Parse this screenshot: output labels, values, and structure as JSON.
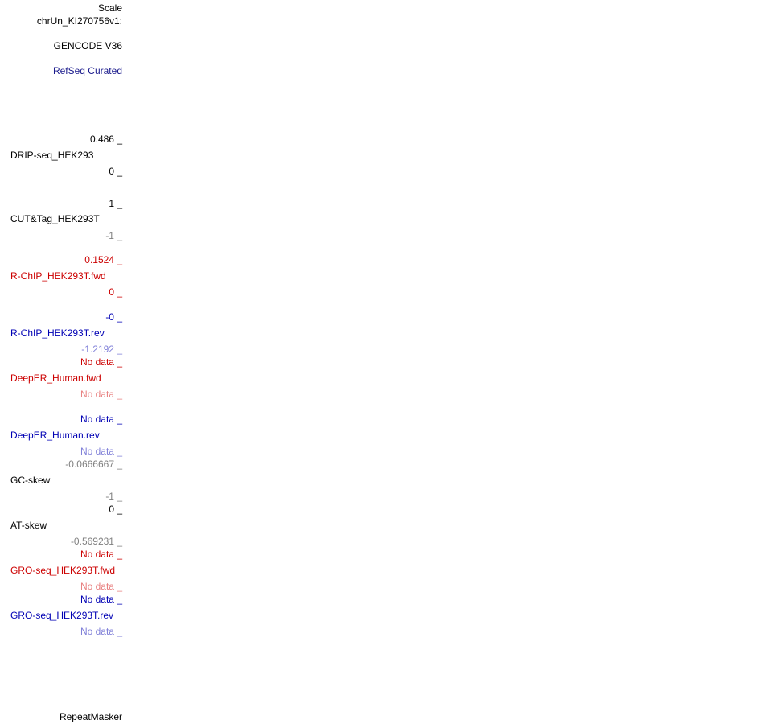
{
  "header": {
    "scale": "Scale",
    "position": "chrUn_KI270756v1:"
  },
  "annotation_tracks": [
    "GENCODE V36",
    "RefSeq Curated"
  ],
  "tracks": [
    {
      "name": "DRIP-seq_HEK293",
      "top": "0.486 _",
      "bottom": "0 _"
    },
    {
      "name": "CUT&Tag_HEK293T",
      "top": "1 _",
      "bottom": "-1 _"
    },
    {
      "name": "R-ChIP_HEK293T.fwd",
      "top": "0.1524 _",
      "bottom": "0 _"
    },
    {
      "name": "R-ChIP_HEK293T.rev",
      "top": "-0 _",
      "bottom": "-1.2192 _"
    },
    {
      "name": "DeepER_Human.fwd",
      "top": "No data _",
      "bottom": "No data _"
    },
    {
      "name": "DeepER_Human.rev",
      "top": "No data _",
      "bottom": "No data _"
    },
    {
      "name": "GC-skew",
      "top": "-0.0666667 _",
      "bottom": "-1 _"
    },
    {
      "name": "AT-skew",
      "top": "0 _",
      "bottom": "-0.569231 _"
    },
    {
      "name": "GRO-seq_HEK293T.fwd",
      "top": "No data _",
      "bottom": "No data _"
    },
    {
      "name": "GRO-seq_HEK293T.rev",
      "top": "No data _",
      "bottom": "No data _"
    }
  ],
  "footer_track": "RepeatMasker"
}
